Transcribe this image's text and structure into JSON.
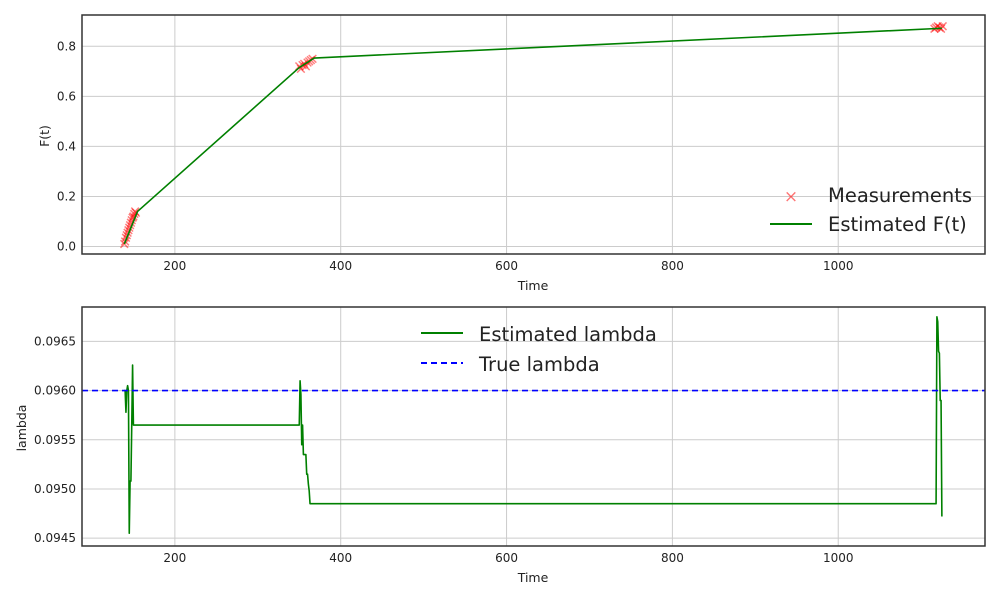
{
  "colors": {
    "estimate": "#008000",
    "measurement": "#ff0000",
    "true_lambda": "#0000ff",
    "grid": "#cccccc",
    "frame": "#333333"
  },
  "chart_data": [
    {
      "type": "line",
      "title": "",
      "xlabel": "Time",
      "ylabel": "F(t)",
      "xlim": [
        88,
        1177
      ],
      "ylim": [
        -0.03,
        0.925
      ],
      "xticks": [
        200,
        400,
        600,
        800,
        1000
      ],
      "yticks": [
        0.0,
        0.2,
        0.4,
        0.6,
        0.8
      ],
      "xtick_labels": [
        "200",
        "400",
        "600",
        "800",
        "1000"
      ],
      "ytick_labels": [
        "0.0",
        "0.2",
        "0.4",
        "0.6",
        "0.8"
      ],
      "grid": true,
      "legend_position": "lower-right",
      "series": [
        {
          "name": "Measurements",
          "kind": "scatter",
          "marker": "x",
          "color": "#ff0000",
          "x": [
            139,
            140,
            141,
            142,
            143,
            144,
            145,
            146,
            147,
            148,
            149,
            150,
            151,
            152,
            153,
            350,
            352,
            354,
            356,
            358,
            360,
            362,
            364,
            366,
            1116,
            1118,
            1120,
            1122,
            1124,
            1126
          ],
          "y": [
            0.01,
            0.02,
            0.035,
            0.045,
            0.055,
            0.065,
            0.075,
            0.085,
            0.095,
            0.105,
            0.115,
            0.12,
            0.13,
            0.14,
            0.135,
            0.72,
            0.71,
            0.725,
            0.73,
            0.72,
            0.735,
            0.74,
            0.745,
            0.75,
            0.87,
            0.875,
            0.88,
            0.875,
            0.87,
            0.88
          ]
        },
        {
          "name": "Estimated F(t)",
          "kind": "line",
          "color": "#008000",
          "x": [
            139,
            155,
            350,
            368,
            1125
          ],
          "y": [
            0.01,
            0.14,
            0.715,
            0.753,
            0.872
          ]
        }
      ]
    },
    {
      "type": "line",
      "title": "",
      "xlabel": "Time",
      "ylabel": "lambda",
      "xlim": [
        88,
        1177
      ],
      "ylim": [
        0.09442,
        0.09685
      ],
      "xticks": [
        200,
        400,
        600,
        800,
        1000
      ],
      "yticks": [
        0.0945,
        0.095,
        0.0955,
        0.096,
        0.0965
      ],
      "xtick_labels": [
        "200",
        "400",
        "600",
        "800",
        "1000"
      ],
      "ytick_labels": [
        "0.0945",
        "0.0950",
        "0.0955",
        "0.0960",
        "0.0965"
      ],
      "grid": true,
      "legend_position": "upper-center",
      "series": [
        {
          "name": "Estimated lambda",
          "kind": "line",
          "color": "#008000",
          "x": [
            139,
            140,
            141,
            142,
            143,
            144,
            145,
            146,
            147,
            148,
            149,
            150,
            151,
            152,
            153,
            154,
            155,
            349,
            350,
            351,
            352,
            353,
            354,
            355,
            356,
            357,
            358,
            359,
            360,
            361,
            362,
            363,
            364,
            365,
            366,
            1118,
            1119,
            1120,
            1121,
            1122,
            1123,
            1124,
            1125
          ],
          "y": [
            0.096,
            0.096,
            0.09578,
            0.096,
            0.09605,
            0.096,
            0.09455,
            0.09508,
            0.09508,
            0.09565,
            0.09626,
            0.09565,
            0.09565,
            0.09565,
            0.09565,
            0.09565,
            0.09565,
            0.09565,
            0.09565,
            0.0961,
            0.09596,
            0.09545,
            0.09565,
            0.09535,
            0.09535,
            0.09535,
            0.09535,
            0.09515,
            0.09515,
            0.09505,
            0.09498,
            0.09485,
            0.09485,
            0.09485,
            0.09485,
            0.09485,
            0.09675,
            0.0967,
            0.0964,
            0.09638,
            0.0959,
            0.0959,
            0.09472
          ]
        },
        {
          "name": "True lambda",
          "kind": "hline",
          "color": "#0000ff",
          "dash": true,
          "y": 0.096
        }
      ]
    }
  ]
}
